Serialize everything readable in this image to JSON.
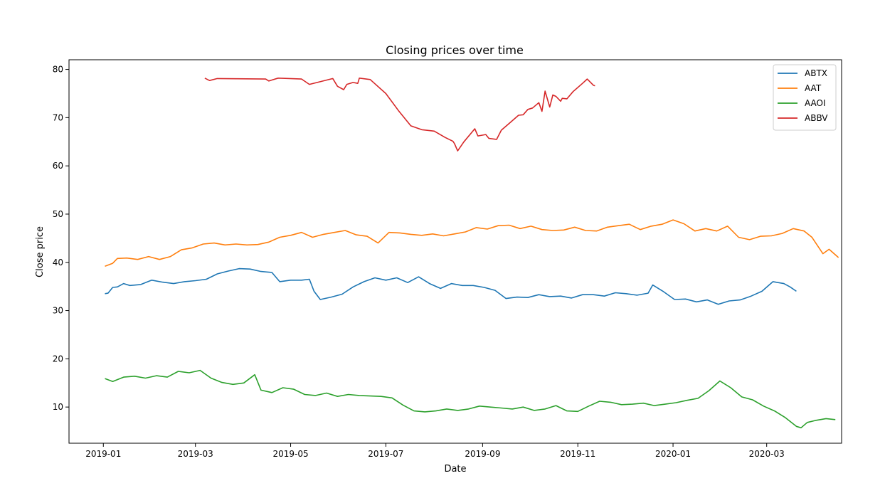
{
  "chart_data": {
    "type": "line",
    "title": "Closing prices over time",
    "xlabel": "Date",
    "ylabel": "Close price",
    "xlim": [
      "2018-12-10",
      "2020-04-18"
    ],
    "ylim": [
      2.5,
      82
    ],
    "x_ticks": [
      "2019-01",
      "2019-03",
      "2019-05",
      "2019-07",
      "2019-09",
      "2019-11",
      "2020-01",
      "2020-03"
    ],
    "y_ticks": [
      10,
      20,
      30,
      40,
      50,
      60,
      70,
      80
    ],
    "grid": false,
    "legend_position": "top-right",
    "series": [
      {
        "name": "ABTX",
        "color": "#1f77b4",
        "points": [
          [
            "2019-01-02",
            33.5
          ],
          [
            "2019-01-04",
            33.6
          ],
          [
            "2019-01-07",
            34.8
          ],
          [
            "2019-01-10",
            34.9
          ],
          [
            "2019-01-14",
            35.6
          ],
          [
            "2019-01-18",
            35.2
          ],
          [
            "2019-01-25",
            35.4
          ],
          [
            "2019-02-01",
            36.3
          ],
          [
            "2019-02-08",
            35.9
          ],
          [
            "2019-02-15",
            35.6
          ],
          [
            "2019-02-22",
            36.0
          ],
          [
            "2019-03-01",
            36.2
          ],
          [
            "2019-03-08",
            36.5
          ],
          [
            "2019-03-15",
            37.6
          ],
          [
            "2019-03-22",
            38.2
          ],
          [
            "2019-03-29",
            38.7
          ],
          [
            "2019-04-05",
            38.6
          ],
          [
            "2019-04-12",
            38.1
          ],
          [
            "2019-04-19",
            37.9
          ],
          [
            "2019-04-24",
            36.0
          ],
          [
            "2019-05-01",
            36.3
          ],
          [
            "2019-05-08",
            36.3
          ],
          [
            "2019-05-13",
            36.5
          ],
          [
            "2019-05-16",
            34.0
          ],
          [
            "2019-05-20",
            32.3
          ],
          [
            "2019-05-27",
            32.8
          ],
          [
            "2019-06-03",
            33.4
          ],
          [
            "2019-06-10",
            34.9
          ],
          [
            "2019-06-17",
            36.0
          ],
          [
            "2019-06-24",
            36.8
          ],
          [
            "2019-07-01",
            36.3
          ],
          [
            "2019-07-08",
            36.8
          ],
          [
            "2019-07-15",
            35.8
          ],
          [
            "2019-07-22",
            37.0
          ],
          [
            "2019-07-29",
            35.6
          ],
          [
            "2019-08-05",
            34.6
          ],
          [
            "2019-08-12",
            35.6
          ],
          [
            "2019-08-19",
            35.2
          ],
          [
            "2019-08-26",
            35.2
          ],
          [
            "2019-09-02",
            34.8
          ],
          [
            "2019-09-09",
            34.2
          ],
          [
            "2019-09-16",
            32.5
          ],
          [
            "2019-09-23",
            32.8
          ],
          [
            "2019-09-30",
            32.7
          ],
          [
            "2019-10-07",
            33.3
          ],
          [
            "2019-10-14",
            32.9
          ],
          [
            "2019-10-21",
            33.0
          ],
          [
            "2019-10-28",
            32.6
          ],
          [
            "2019-11-04",
            33.3
          ],
          [
            "2019-11-11",
            33.3
          ],
          [
            "2019-11-18",
            33.0
          ],
          [
            "2019-11-25",
            33.7
          ],
          [
            "2019-12-02",
            33.5
          ],
          [
            "2019-12-09",
            33.2
          ],
          [
            "2019-12-16",
            33.6
          ],
          [
            "2019-12-19",
            35.3
          ],
          [
            "2019-12-26",
            33.9
          ],
          [
            "2020-01-02",
            32.3
          ],
          [
            "2020-01-09",
            32.4
          ],
          [
            "2020-01-16",
            31.8
          ],
          [
            "2020-01-23",
            32.2
          ],
          [
            "2020-01-30",
            31.3
          ],
          [
            "2020-02-06",
            32.0
          ],
          [
            "2020-02-13",
            32.2
          ],
          [
            "2020-02-20",
            33.0
          ],
          [
            "2020-02-27",
            34.0
          ],
          [
            "2020-03-05",
            36.0
          ],
          [
            "2020-03-12",
            35.6
          ],
          [
            "2020-03-16",
            34.9
          ],
          [
            "2020-03-20",
            34.0
          ]
        ]
      },
      {
        "name": "AAT",
        "color": "#ff7f0e",
        "points": [
          [
            "2019-01-02",
            39.2
          ],
          [
            "2019-01-07",
            39.8
          ],
          [
            "2019-01-10",
            40.8
          ],
          [
            "2019-01-16",
            40.9
          ],
          [
            "2019-01-23",
            40.6
          ],
          [
            "2019-01-30",
            41.2
          ],
          [
            "2019-02-06",
            40.6
          ],
          [
            "2019-02-13",
            41.2
          ],
          [
            "2019-02-20",
            42.6
          ],
          [
            "2019-02-27",
            43.0
          ],
          [
            "2019-03-06",
            43.8
          ],
          [
            "2019-03-13",
            44.0
          ],
          [
            "2019-03-20",
            43.6
          ],
          [
            "2019-03-27",
            43.8
          ],
          [
            "2019-04-03",
            43.6
          ],
          [
            "2019-04-10",
            43.7
          ],
          [
            "2019-04-17",
            44.2
          ],
          [
            "2019-04-24",
            45.2
          ],
          [
            "2019-05-01",
            45.6
          ],
          [
            "2019-05-08",
            46.2
          ],
          [
            "2019-05-15",
            45.2
          ],
          [
            "2019-05-22",
            45.8
          ],
          [
            "2019-05-29",
            46.2
          ],
          [
            "2019-06-05",
            46.6
          ],
          [
            "2019-06-12",
            45.7
          ],
          [
            "2019-06-19",
            45.4
          ],
          [
            "2019-06-26",
            44.0
          ],
          [
            "2019-07-03",
            46.2
          ],
          [
            "2019-07-10",
            46.1
          ],
          [
            "2019-07-17",
            45.8
          ],
          [
            "2019-07-24",
            45.6
          ],
          [
            "2019-07-31",
            45.9
          ],
          [
            "2019-08-07",
            45.5
          ],
          [
            "2019-08-14",
            45.9
          ],
          [
            "2019-08-21",
            46.3
          ],
          [
            "2019-08-28",
            47.2
          ],
          [
            "2019-09-04",
            46.9
          ],
          [
            "2019-09-11",
            47.6
          ],
          [
            "2019-09-18",
            47.7
          ],
          [
            "2019-09-25",
            47.0
          ],
          [
            "2019-10-02",
            47.5
          ],
          [
            "2019-10-09",
            46.8
          ],
          [
            "2019-10-16",
            46.6
          ],
          [
            "2019-10-23",
            46.7
          ],
          [
            "2019-10-30",
            47.3
          ],
          [
            "2019-11-06",
            46.6
          ],
          [
            "2019-11-13",
            46.5
          ],
          [
            "2019-11-20",
            47.3
          ],
          [
            "2019-11-27",
            47.6
          ],
          [
            "2019-12-04",
            47.9
          ],
          [
            "2019-12-11",
            46.8
          ],
          [
            "2019-12-18",
            47.5
          ],
          [
            "2019-12-25",
            47.9
          ],
          [
            "2020-01-01",
            48.8
          ],
          [
            "2020-01-08",
            48.0
          ],
          [
            "2020-01-15",
            46.5
          ],
          [
            "2020-01-22",
            47.0
          ],
          [
            "2020-01-29",
            46.5
          ],
          [
            "2020-02-05",
            47.5
          ],
          [
            "2020-02-12",
            45.2
          ],
          [
            "2020-02-19",
            44.7
          ],
          [
            "2020-02-26",
            45.4
          ],
          [
            "2020-03-04",
            45.5
          ],
          [
            "2020-03-11",
            46.0
          ],
          [
            "2020-03-18",
            47.0
          ],
          [
            "2020-03-25",
            46.5
          ],
          [
            "2020-03-30",
            45.2
          ],
          [
            "2020-04-06",
            41.8
          ],
          [
            "2020-04-10",
            42.7
          ],
          [
            "2020-04-16",
            41.0
          ]
        ]
      },
      {
        "name": "AAOI",
        "color": "#2ca02c",
        "points": [
          [
            "2019-01-02",
            15.9
          ],
          [
            "2019-01-07",
            15.3
          ],
          [
            "2019-01-14",
            16.2
          ],
          [
            "2019-01-21",
            16.4
          ],
          [
            "2019-01-28",
            16.0
          ],
          [
            "2019-02-04",
            16.5
          ],
          [
            "2019-02-11",
            16.2
          ],
          [
            "2019-02-18",
            17.4
          ],
          [
            "2019-02-25",
            17.1
          ],
          [
            "2019-03-04",
            17.6
          ],
          [
            "2019-03-11",
            16.0
          ],
          [
            "2019-03-18",
            15.1
          ],
          [
            "2019-03-25",
            14.7
          ],
          [
            "2019-04-01",
            15.0
          ],
          [
            "2019-04-08",
            16.7
          ],
          [
            "2019-04-12",
            13.5
          ],
          [
            "2019-04-19",
            13.0
          ],
          [
            "2019-04-26",
            14.0
          ],
          [
            "2019-05-03",
            13.7
          ],
          [
            "2019-05-10",
            12.6
          ],
          [
            "2019-05-17",
            12.4
          ],
          [
            "2019-05-24",
            12.9
          ],
          [
            "2019-05-31",
            12.2
          ],
          [
            "2019-06-07",
            12.6
          ],
          [
            "2019-06-14",
            12.4
          ],
          [
            "2019-06-21",
            12.3
          ],
          [
            "2019-06-28",
            12.2
          ],
          [
            "2019-07-05",
            11.9
          ],
          [
            "2019-07-12",
            10.4
          ],
          [
            "2019-07-19",
            9.2
          ],
          [
            "2019-07-26",
            9.0
          ],
          [
            "2019-08-02",
            9.2
          ],
          [
            "2019-08-09",
            9.6
          ],
          [
            "2019-08-16",
            9.3
          ],
          [
            "2019-08-23",
            9.6
          ],
          [
            "2019-08-30",
            10.2
          ],
          [
            "2019-09-06",
            10.0
          ],
          [
            "2019-09-13",
            9.8
          ],
          [
            "2019-09-20",
            9.6
          ],
          [
            "2019-09-27",
            10.0
          ],
          [
            "2019-10-04",
            9.3
          ],
          [
            "2019-10-11",
            9.6
          ],
          [
            "2019-10-18",
            10.3
          ],
          [
            "2019-10-25",
            9.2
          ],
          [
            "2019-11-01",
            9.1
          ],
          [
            "2019-11-08",
            10.2
          ],
          [
            "2019-11-15",
            11.2
          ],
          [
            "2019-11-22",
            11.0
          ],
          [
            "2019-11-29",
            10.5
          ],
          [
            "2019-12-06",
            10.6
          ],
          [
            "2019-12-13",
            10.8
          ],
          [
            "2019-12-20",
            10.3
          ],
          [
            "2019-12-27",
            10.6
          ],
          [
            "2020-01-03",
            10.9
          ],
          [
            "2020-01-10",
            11.4
          ],
          [
            "2020-01-17",
            11.8
          ],
          [
            "2020-01-24",
            13.4
          ],
          [
            "2020-01-31",
            15.4
          ],
          [
            "2020-02-07",
            14.0
          ],
          [
            "2020-02-14",
            12.1
          ],
          [
            "2020-02-21",
            11.5
          ],
          [
            "2020-02-28",
            10.2
          ],
          [
            "2020-03-06",
            9.2
          ],
          [
            "2020-03-13",
            7.8
          ],
          [
            "2020-03-20",
            6.0
          ],
          [
            "2020-03-23",
            5.7
          ],
          [
            "2020-03-27",
            6.8
          ],
          [
            "2020-04-01",
            7.2
          ],
          [
            "2020-04-08",
            7.6
          ],
          [
            "2020-04-14",
            7.4
          ]
        ]
      },
      {
        "name": "ABBV",
        "color": "#d62728",
        "points": [
          [
            "2019-03-07",
            78.2
          ],
          [
            "2019-03-10",
            77.7
          ],
          [
            "2019-03-15",
            78.1
          ],
          [
            "2019-04-15",
            78.0
          ],
          [
            "2019-04-17",
            77.6
          ],
          [
            "2019-04-23",
            78.2
          ],
          [
            "2019-05-08",
            78.0
          ],
          [
            "2019-05-13",
            76.9
          ],
          [
            "2019-05-28",
            78.1
          ],
          [
            "2019-05-31",
            76.5
          ],
          [
            "2019-06-04",
            75.8
          ],
          [
            "2019-06-06",
            76.9
          ],
          [
            "2019-06-10",
            77.3
          ],
          [
            "2019-06-13",
            77.1
          ],
          [
            "2019-06-14",
            78.2
          ],
          [
            "2019-06-21",
            77.9
          ],
          [
            "2019-07-01",
            75.0
          ],
          [
            "2019-07-09",
            71.5
          ],
          [
            "2019-07-17",
            68.3
          ],
          [
            "2019-07-24",
            67.5
          ],
          [
            "2019-08-01",
            67.2
          ],
          [
            "2019-08-08",
            65.9
          ],
          [
            "2019-08-13",
            65.1
          ],
          [
            "2019-08-14",
            64.6
          ],
          [
            "2019-08-16",
            63.1
          ],
          [
            "2019-08-20",
            65.0
          ],
          [
            "2019-08-27",
            67.7
          ],
          [
            "2019-08-29",
            66.2
          ],
          [
            "2019-09-03",
            66.5
          ],
          [
            "2019-09-05",
            65.7
          ],
          [
            "2019-09-10",
            65.5
          ],
          [
            "2019-09-13",
            67.4
          ],
          [
            "2019-09-18",
            68.8
          ],
          [
            "2019-09-24",
            70.5
          ],
          [
            "2019-09-27",
            70.6
          ],
          [
            "2019-09-30",
            71.7
          ],
          [
            "2019-10-03",
            72.0
          ],
          [
            "2019-10-07",
            73.1
          ],
          [
            "2019-10-09",
            71.3
          ],
          [
            "2019-10-11",
            75.5
          ],
          [
            "2019-10-14",
            72.2
          ],
          [
            "2019-10-16",
            74.7
          ],
          [
            "2019-10-18",
            74.4
          ],
          [
            "2019-10-21",
            73.4
          ],
          [
            "2019-10-22",
            74.0
          ],
          [
            "2019-10-25",
            73.9
          ],
          [
            "2019-10-29",
            75.4
          ],
          [
            "2019-11-04",
            77.1
          ],
          [
            "2019-11-07",
            78.0
          ],
          [
            "2019-11-11",
            76.7
          ],
          [
            "2019-11-12",
            76.6
          ]
        ]
      }
    ]
  }
}
